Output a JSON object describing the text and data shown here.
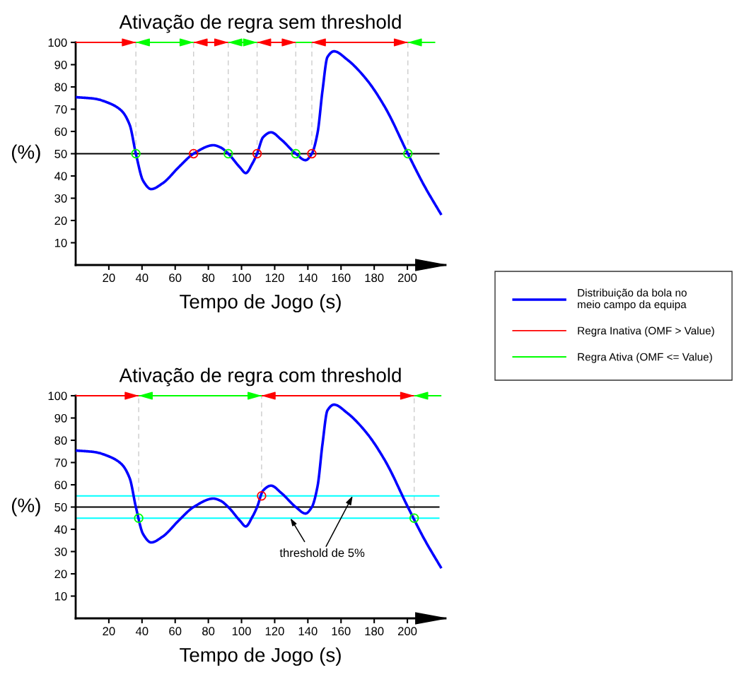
{
  "chart_data": [
    {
      "type": "line",
      "title": "Ativação de regra sem threshold",
      "xlabel": "Tempo de Jogo (s)",
      "ylabel": "(%)",
      "xlim": [
        0,
        223
      ],
      "ylim": [
        0,
        100
      ],
      "xticks": [
        20,
        40,
        60,
        80,
        100,
        120,
        140,
        160,
        180,
        200
      ],
      "yticks": [
        10,
        20,
        30,
        40,
        50,
        60,
        70,
        80,
        90,
        100
      ],
      "legend": "right",
      "series": [
        {
          "name": "Distribuição da bola no\nmeio campo da equipa",
          "color": "#0000ff",
          "x": [
            0,
            11.4,
            20.2,
            27.5,
            32.6,
            36.3,
            40.7,
            45.5,
            52.4,
            62.6,
            71.1,
            83.1,
            87.4,
            92,
            99.1,
            102.6,
            106.4,
            109.4,
            113,
            117.8,
            124,
            132.7,
            138.6,
            142.4,
            145.9,
            148.8,
            151.8,
            155.8,
            163.5,
            175.1,
            186.8,
            200.3,
            210.2,
            220.5
          ],
          "values": [
            75.4,
            74.7,
            72.7,
            69.4,
            62.9,
            50,
            37.8,
            34.1,
            36.7,
            44.3,
            50,
            53.8,
            52.8,
            50,
            43.8,
            41.3,
            45.4,
            50,
            57.4,
            59.6,
            56.3,
            50,
            47.1,
            50,
            59.6,
            78.2,
            93.4,
            96,
            92.4,
            83.6,
            70.5,
            50,
            35.6,
            22.5
          ]
        },
        {
          "name": "Regra Inativa (OMF > Value)",
          "color": "#ff0000",
          "x": [
            0,
            36.3,
            null,
            71.1,
            92,
            null,
            109.4,
            132.7,
            null,
            142.4,
            200.3
          ],
          "values": [
            100,
            100,
            null,
            100,
            100,
            null,
            100,
            100,
            null,
            100,
            100
          ]
        },
        {
          "name": "Regra Ativa (OMF <= Value)",
          "color": "#00ff00",
          "x": [
            36.3,
            71.1,
            null,
            92,
            109.4,
            null,
            132.7,
            142.4,
            null,
            200.3,
            216.8
          ],
          "values": [
            100,
            100,
            null,
            100,
            100,
            null,
            100,
            100,
            null,
            100,
            100
          ]
        },
        {
          "type": "scatter",
          "marker": "circle",
          "color": "#ff0000",
          "x": [
            71.1,
            109.4,
            142.4
          ],
          "values": [
            50,
            50,
            50
          ]
        },
        {
          "type": "scatter",
          "marker": "circle",
          "color": "#00ff00",
          "x": [
            36.3,
            92,
            132.7,
            200.3
          ],
          "values": [
            50,
            50,
            50,
            50
          ]
        }
      ],
      "ref_lines": [
        {
          "axis": "y",
          "value": 50,
          "color": "#000000"
        },
        {
          "axis": "x",
          "value": 36.3,
          "color": "#cccccc",
          "line_style": "dashed"
        },
        {
          "axis": "x",
          "value": 71.1,
          "color": "#cccccc",
          "line_style": "dashed"
        },
        {
          "axis": "x",
          "value": 92,
          "color": "#cccccc",
          "line_style": "dashed"
        },
        {
          "axis": "x",
          "value": 109.4,
          "color": "#cccccc",
          "line_style": "dashed"
        },
        {
          "axis": "x",
          "value": 132.7,
          "color": "#cccccc",
          "line_style": "dashed"
        },
        {
          "axis": "x",
          "value": 142.4,
          "color": "#cccccc",
          "line_style": "dashed"
        },
        {
          "axis": "x",
          "value": 200.3,
          "color": "#cccccc",
          "line_style": "dashed"
        }
      ]
    },
    {
      "type": "line",
      "title": "Ativação de regra com threshold",
      "xlabel": "Tempo de Jogo (s)",
      "ylabel": "(%)",
      "xlim": [
        0,
        223
      ],
      "ylim": [
        0,
        100
      ],
      "xticks": [
        20,
        40,
        60,
        80,
        100,
        120,
        140,
        160,
        180,
        200
      ],
      "yticks": [
        10,
        20,
        30,
        40,
        50,
        60,
        70,
        80,
        90,
        100
      ],
      "annotations": [
        {
          "text": "threshold de 5%",
          "x": 167,
          "y": 55
        }
      ],
      "series": [
        {
          "color": "#0000ff",
          "x": [
            0,
            11.4,
            20.2,
            27.5,
            32.6,
            36.3,
            40.7,
            45.5,
            52.4,
            62.6,
            71.1,
            83.1,
            87.4,
            92,
            99.1,
            102.6,
            106.4,
            109.4,
            113,
            117.8,
            124,
            132.7,
            138.6,
            142.4,
            145.9,
            148.8,
            151.8,
            155.8,
            163.5,
            175.1,
            186.8,
            200.3,
            210.2,
            220.5
          ],
          "values": [
            75.4,
            74.7,
            72.7,
            69.4,
            62.9,
            50,
            37.8,
            34.1,
            36.7,
            44.3,
            50,
            53.8,
            52.8,
            50,
            43.8,
            41.3,
            45.4,
            50,
            57.4,
            59.6,
            56.3,
            50,
            47.1,
            50,
            59.6,
            78.2,
            93.4,
            96,
            92.4,
            83.6,
            70.5,
            50,
            35.6,
            22.5
          ]
        },
        {
          "color": "#ff0000",
          "x": [
            0,
            38,
            null,
            112.1,
            204.1
          ],
          "values": [
            100,
            100,
            null,
            100,
            100
          ]
        },
        {
          "color": "#00ff00",
          "x": [
            38,
            112.1,
            null,
            204.1,
            220.5
          ],
          "values": [
            100,
            100,
            null,
            100,
            100
          ]
        },
        {
          "type": "scatter",
          "marker": "circle",
          "color": "#ff0000",
          "x": [
            112.1
          ],
          "values": [
            55
          ]
        },
        {
          "type": "scatter",
          "marker": "circle",
          "color": "#00ff00",
          "x": [
            38,
            204.1
          ],
          "values": [
            45,
            45
          ]
        }
      ],
      "ref_lines": [
        {
          "axis": "y",
          "value": 50,
          "color": "#000000"
        },
        {
          "axis": "y",
          "value": 55,
          "color": "#00ffff"
        },
        {
          "axis": "y",
          "value": 45,
          "color": "#00ffff"
        },
        {
          "axis": "x",
          "value": 38,
          "color": "#cccccc",
          "line_style": "dashed"
        },
        {
          "axis": "x",
          "value": 112.1,
          "color": "#cccccc",
          "line_style": "dashed"
        },
        {
          "axis": "x",
          "value": 204.1,
          "color": "#cccccc",
          "line_style": "dashed"
        }
      ]
    }
  ]
}
